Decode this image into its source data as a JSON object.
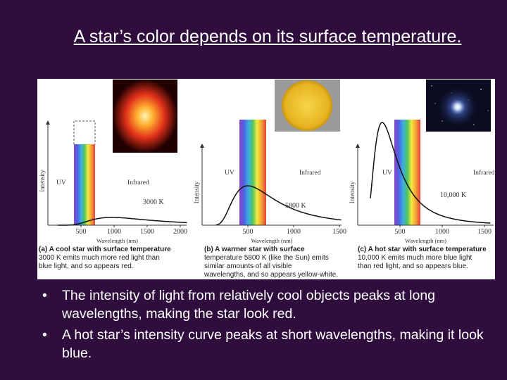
{
  "title": "A star’s color depends on its surface temperature.",
  "figure": {
    "panels": [
      {
        "y_axis_label": "Intensity",
        "x_axis_label": "Wavelength (nm)",
        "uv_label": "UV",
        "infrared_label": "Infrared",
        "temperature_label": "3000 K",
        "x_ticks": [
          "500",
          "1000",
          "1500",
          "2000"
        ],
        "caption": [
          "(a) A cool star with surface temperature",
          "3000 K emits much more red light than",
          "blue light, and so appears red."
        ]
      },
      {
        "y_axis_label": "Intensity",
        "x_axis_label": "Wavelength (nm)",
        "uv_label": "UV",
        "infrared_label": "Infrared",
        "temperature_label": "5800 K",
        "x_ticks": [
          "500",
          "1000",
          "1500"
        ],
        "caption": [
          "(b) A warmer star with surface",
          "temperature 5800 K (like the Sun) emits",
          "similar amounts of all visible",
          "wavelengths, and so appears yellow-white."
        ]
      },
      {
        "y_axis_label": "Intensity",
        "x_axis_label": "Wavelength (nm)",
        "uv_label": "UV",
        "infrared_label": "Infrared",
        "temperature_label": "10,000 K",
        "x_ticks": [
          "500",
          "1000",
          "1500"
        ],
        "caption": [
          "(c) A hot star with surface temperature",
          "10,000 K emits much more blue light",
          "than red light, and so appears blue."
        ]
      }
    ]
  },
  "bullets": [
    "The intensity of light from relatively cool objects peaks at long wavelengths, making the star look red.",
    "A hot star’s intensity curve peaks at short wavelengths, making it look blue."
  ]
}
